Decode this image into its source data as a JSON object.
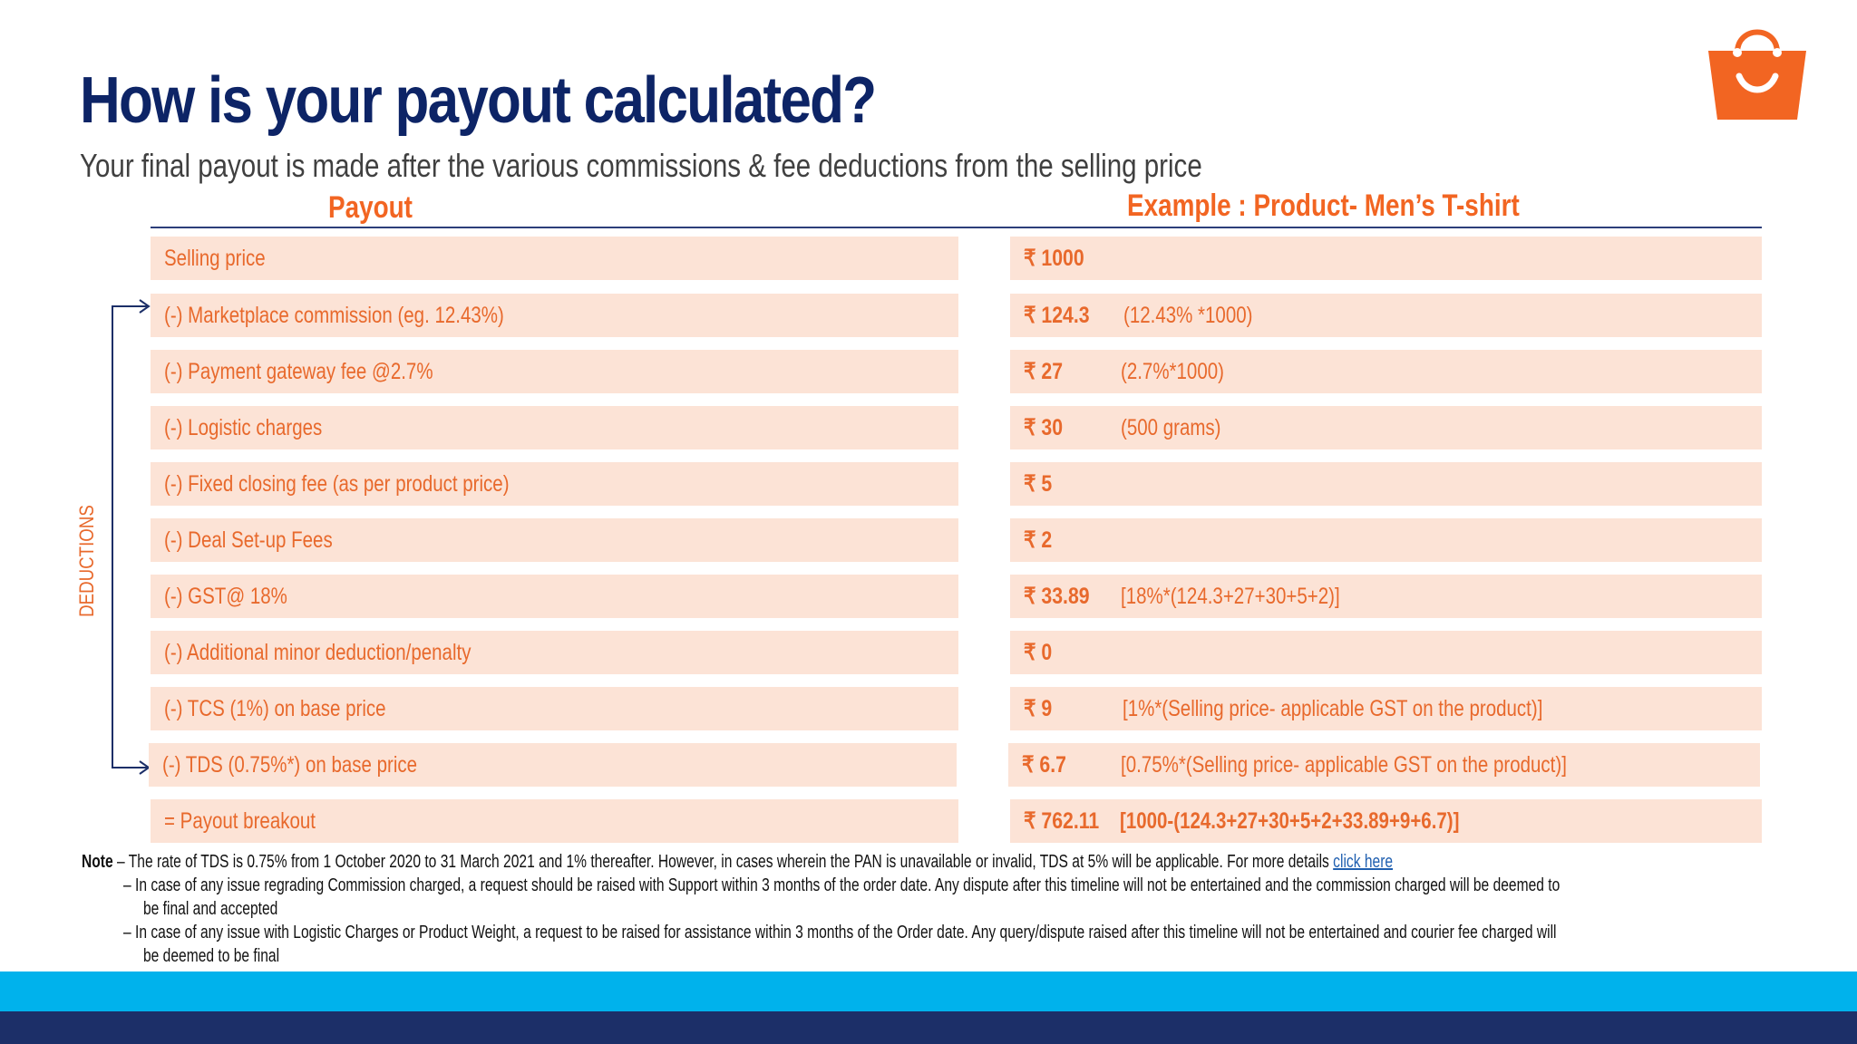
{
  "title": "How is your payout calculated?",
  "subtitle": "Your final payout is made after the various commissions & fee deductions from the selling price",
  "columns": {
    "left": "Payout",
    "right": "Example : Product- Men’s T-shirt"
  },
  "side_label": "DEDUCTIONS",
  "rows": [
    {
      "label": "Selling price",
      "amount": "₹ 1000",
      "calc": ""
    },
    {
      "label": "(-)  Marketplace commission (eg. 12.43%)",
      "amount": "₹ 124.3",
      "calc": "(12.43% *1000)"
    },
    {
      "label": "(-) Payment gateway fee @2.7%",
      "amount": "₹ 27",
      "calc": "(2.7%*1000)"
    },
    {
      "label": "(-) Logistic charges",
      "amount": "₹ 30",
      "calc": "(500 grams)"
    },
    {
      "label": "(-) Fixed closing fee (as per product price)",
      "amount": "₹ 5",
      "calc": ""
    },
    {
      "label": "(-) Deal Set-up Fees",
      "amount": "₹ 2",
      "calc": ""
    },
    {
      "label": "(-) GST@ 18%",
      "amount": "₹ 33.89",
      "calc": "[18%*(124.3+27+30+5+2)]"
    },
    {
      "label": "(-) Additional minor deduction/penalty",
      "amount": "₹ 0",
      "calc": ""
    },
    {
      "label": "(-) TCS (1%) on base price",
      "amount": "₹ 9",
      "calc": "[1%*(Selling price- applicable GST on the product)]"
    },
    {
      "label": "(-) TDS (0.75%*) on base price",
      "amount": "₹ 6.7",
      "calc": "[0.75%*(Selling price- applicable GST on the product)]"
    },
    {
      "label": "= Payout breakout",
      "amount": "₹ 762.11",
      "calc": "[1000-(124.3+27+30+5+2+33.89+9+6.7)]"
    }
  ],
  "notes": {
    "label": "Note",
    "dash": "–",
    "line1": "The rate of TDS is 0.75% from 1 October 2020 to 31 March 2021 and 1% thereafter. However, in cases wherein the PAN is unavailable or invalid, TDS at 5% will be applicable. For more details",
    "link": "click here",
    "line2a": "In case of any issue regrading Commission charged, a request should be raised with Support within 3 months of the order date.  Any dispute after this timeline will not be entertained and the commission  charged will be deemed to",
    "line2b": "be final and accepted",
    "line3a": "In case of any issue with Logistic Charges or Product Weight, a request to be raised for assistance within 3 months of the Order date. Any query/dispute  raised after this timeline will not be   entertained and courier fee charged will",
    "line3b": "be deemed to be final"
  },
  "colors": {
    "title": "#0d2466",
    "accent": "#f26522",
    "row_fill": "#fce3d6",
    "band_light": "#00b2ec",
    "band_dark": "#1c2f68"
  },
  "logo": "shopping-bag-icon"
}
